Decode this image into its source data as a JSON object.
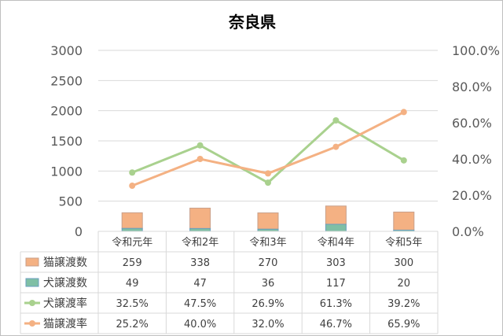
{
  "chart_data": {
    "type": "bar",
    "title": "奈良県",
    "categories": [
      "令和元年",
      "令和2年",
      "令和3年",
      "令和4年",
      "令和5年"
    ],
    "y_left_ticks": [
      "0",
      "500",
      "1000",
      "1500",
      "2000",
      "2500",
      "3000"
    ],
    "y_right_ticks": [
      "0.0%",
      "20.0%",
      "40.0%",
      "60.0%",
      "80.0%",
      "100.0%"
    ],
    "ylim_left": [
      0,
      3000
    ],
    "ylim_right": [
      0,
      1.0
    ],
    "grid": true,
    "legend": "table-left",
    "series": [
      {
        "name": "猫譲渡数",
        "type": "bar-stacked",
        "axis": "left",
        "color": "#f4b183",
        "edge": "#c9a08a",
        "values": [
          259,
          338,
          270,
          303,
          300
        ],
        "labels": [
          "259",
          "338",
          "270",
          "303",
          "300"
        ]
      },
      {
        "name": "犬譲渡数",
        "type": "bar-stacked",
        "axis": "left",
        "color": "#7fbfa5",
        "edge": "#6a9fbf",
        "values": [
          49,
          47,
          36,
          117,
          20
        ],
        "labels": [
          "49",
          "47",
          "36",
          "117",
          "20"
        ]
      },
      {
        "name": "犬譲渡率",
        "type": "line",
        "axis": "right",
        "color": "#a9d18e",
        "values": [
          0.325,
          0.475,
          0.269,
          0.613,
          0.392
        ],
        "labels": [
          "32.5%",
          "47.5%",
          "26.9%",
          "61.3%",
          "39.2%"
        ]
      },
      {
        "name": "猫譲渡率",
        "type": "line",
        "axis": "right",
        "color": "#f4b183",
        "values": [
          0.252,
          0.4,
          0.32,
          0.467,
          0.659
        ],
        "labels": [
          "25.2%",
          "40.0%",
          "32.0%",
          "46.7%",
          "65.9%"
        ]
      }
    ]
  }
}
